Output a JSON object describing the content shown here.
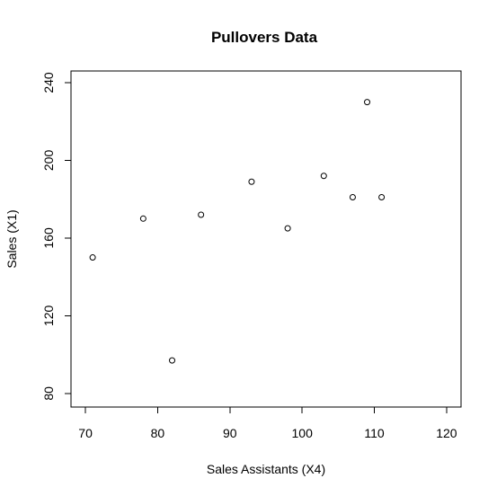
{
  "chart_data": {
    "type": "scatter",
    "title": "Pullovers Data",
    "xlabel": "Sales Assistants (X4)",
    "ylabel": "Sales (X1)",
    "xlim": [
      68,
      122
    ],
    "ylim": [
      73,
      246
    ],
    "x_ticks": [
      70,
      80,
      90,
      100,
      110,
      120
    ],
    "y_ticks": [
      80,
      120,
      160,
      200,
      240
    ],
    "grid": false,
    "legend": "none",
    "marker": "open-circle",
    "points": [
      {
        "x": 71,
        "y": 150
      },
      {
        "x": 78,
        "y": 170
      },
      {
        "x": 82,
        "y": 97
      },
      {
        "x": 86,
        "y": 172
      },
      {
        "x": 93,
        "y": 189
      },
      {
        "x": 98,
        "y": 165
      },
      {
        "x": 103,
        "y": 192
      },
      {
        "x": 107,
        "y": 181
      },
      {
        "x": 109,
        "y": 230
      },
      {
        "x": 111,
        "y": 181
      }
    ]
  }
}
